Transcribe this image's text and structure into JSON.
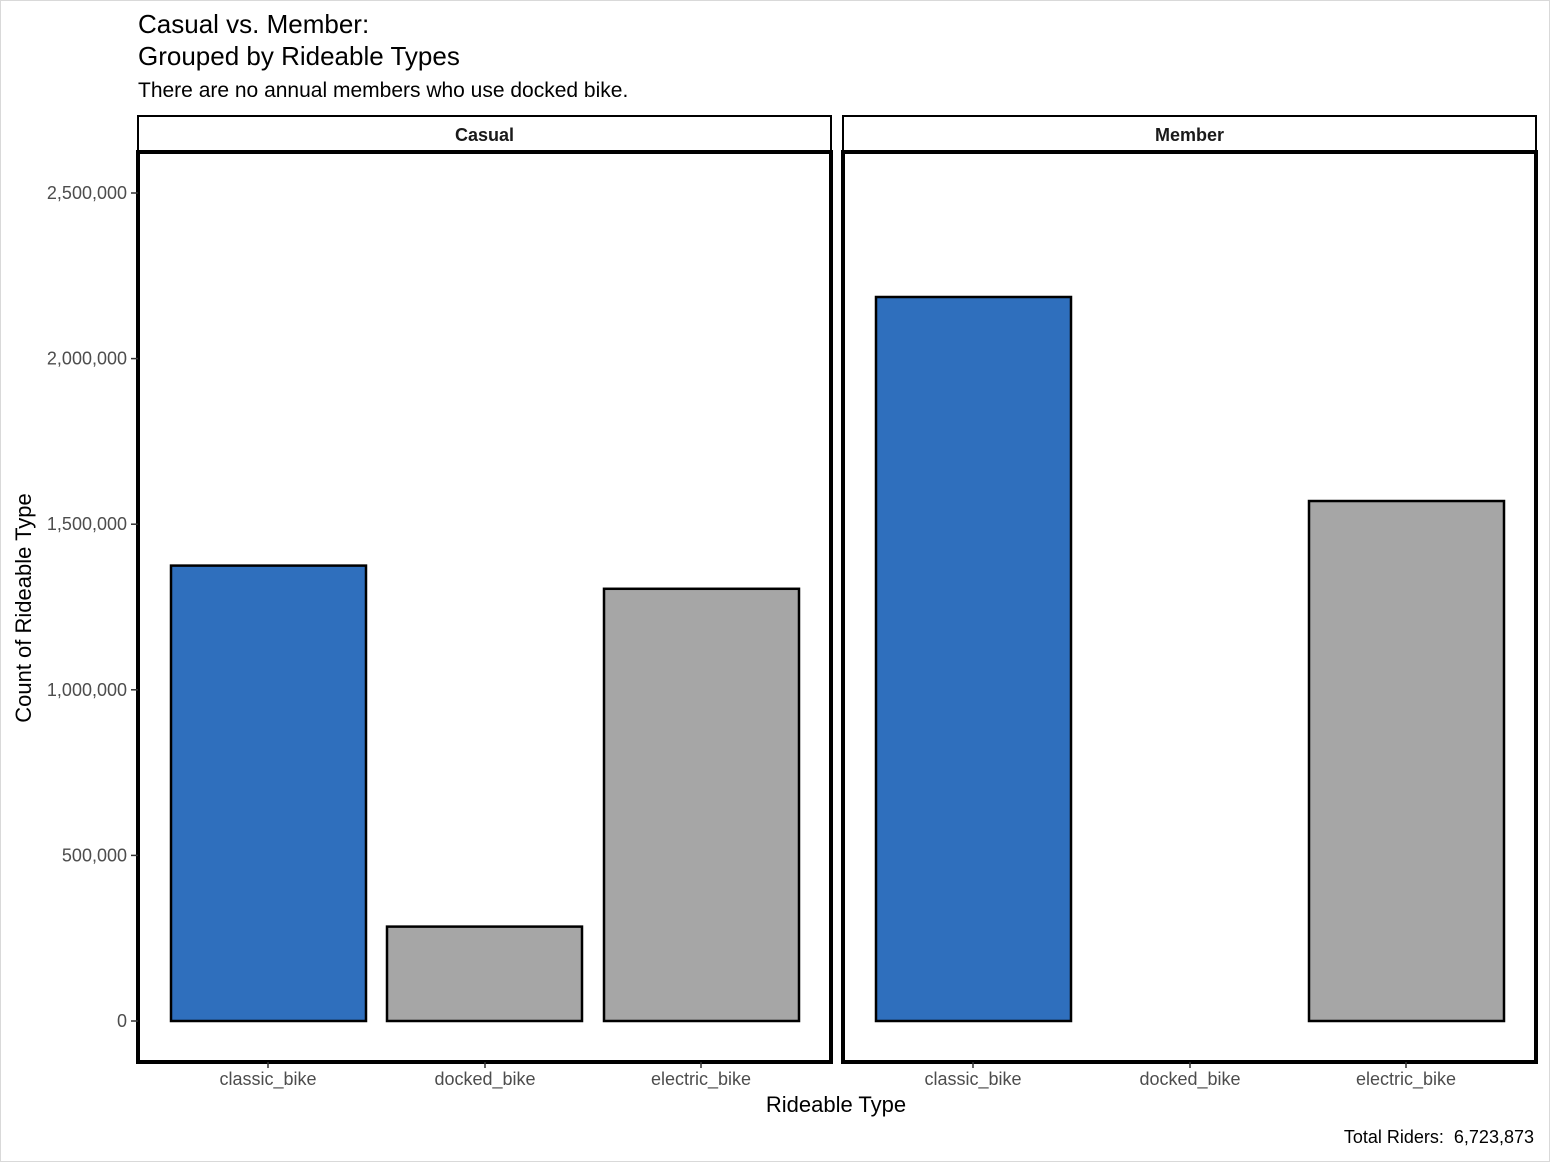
{
  "chart_data": {
    "type": "bar",
    "title_line1": "Casual vs. Member:",
    "title_line2": "Grouped by Rideable Types",
    "subtitle": "There are no annual members who use docked bike.",
    "xlabel": "Rideable Type",
    "ylabel": "Count of Rideable Type",
    "caption": "Total Riders:  6,723,873",
    "categories": [
      "classic_bike",
      "docked_bike",
      "electric_bike"
    ],
    "ylim": [
      0,
      2630000
    ],
    "yticks": [
      0,
      500000,
      1000000,
      1500000,
      2000000,
      2500000
    ],
    "ytick_labels": [
      "0",
      "500,000",
      "1,000,000",
      "1,500,000",
      "2,000,000",
      "2,500,000"
    ],
    "grid": false,
    "colors": {
      "classic_bike": "#2F6FBD",
      "docked_bike": "#A6A6A6",
      "electric_bike": "#A6A6A6",
      "bar_outline": "#000000",
      "tick_text": "#4D4D4D"
    },
    "facets": [
      {
        "name": "Casual",
        "values": [
          1375000,
          285000,
          1305000
        ]
      },
      {
        "name": "Member",
        "values": [
          2186000,
          0,
          1570000
        ]
      }
    ]
  }
}
